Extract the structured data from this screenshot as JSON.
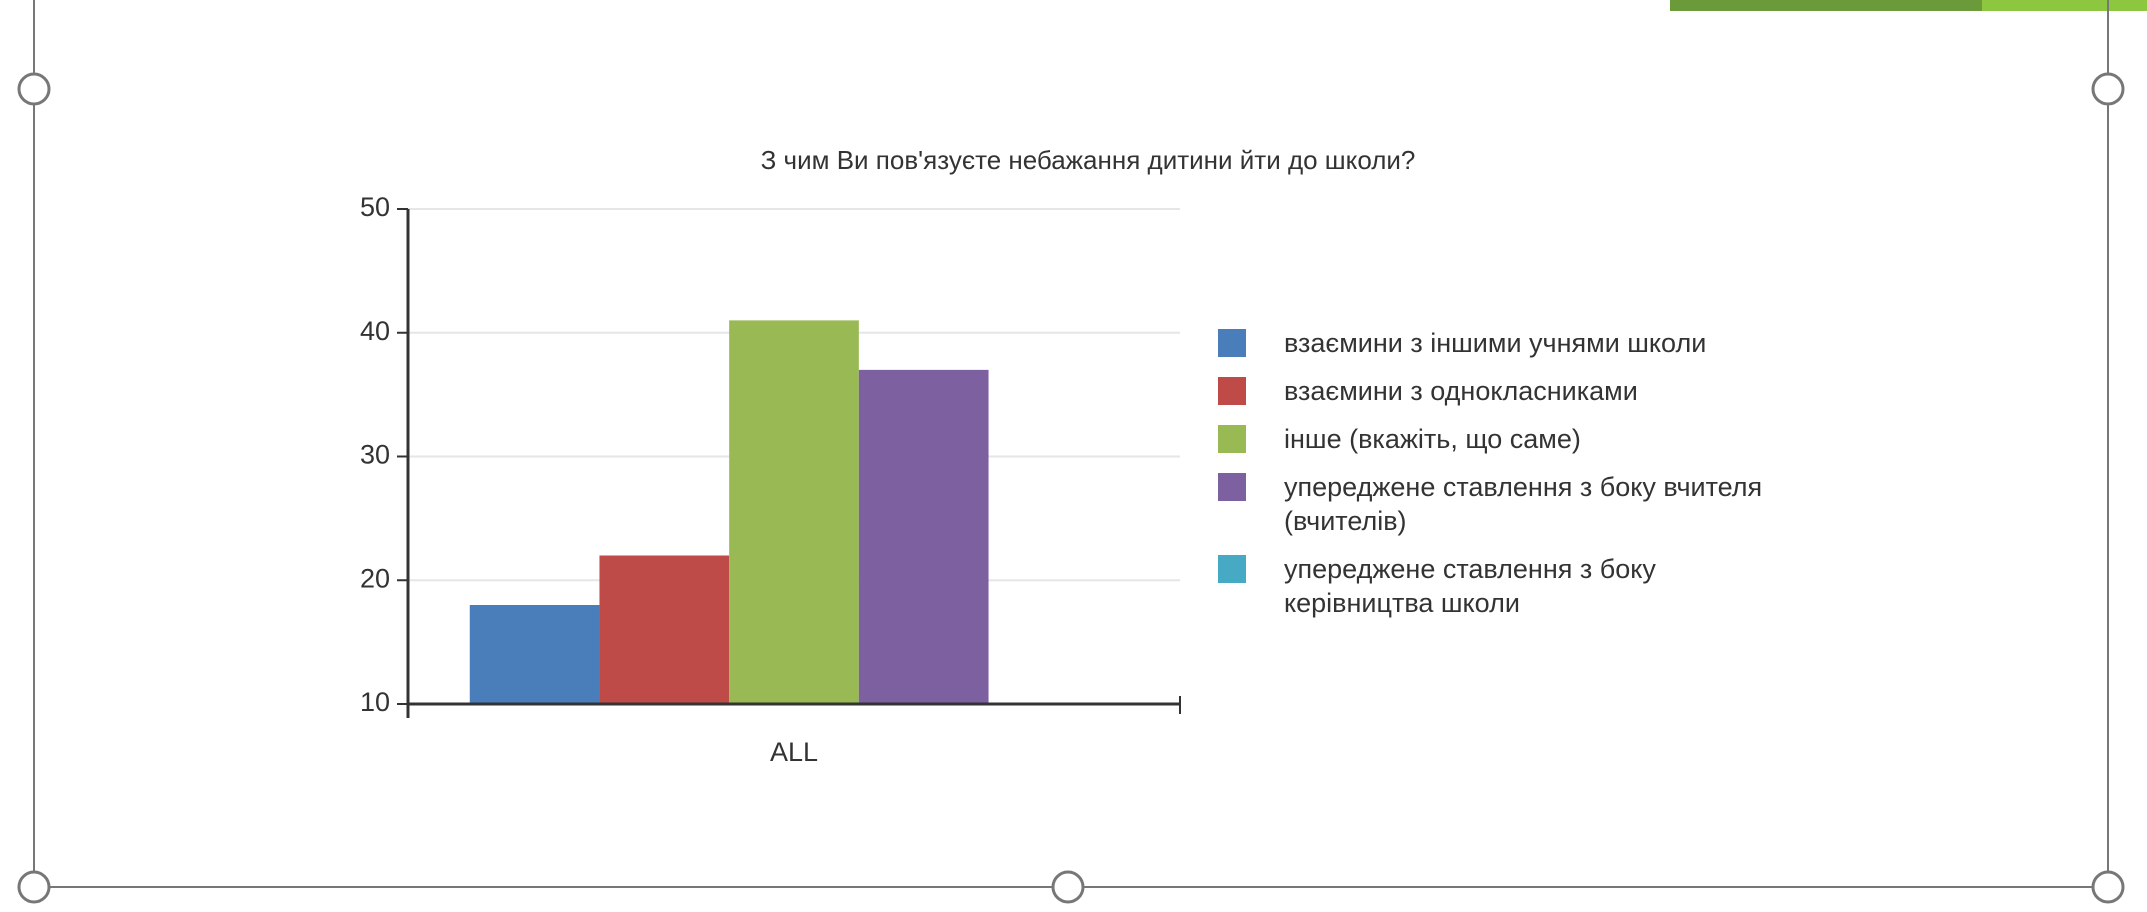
{
  "chart_data": {
    "type": "bar",
    "title": "З чим Ви пов'язуєте небажання дитини йти до школи?",
    "categories": [
      "ALL"
    ],
    "series": [
      {
        "name": "взаємини з іншими учнями школи",
        "color": "#4a7ebb",
        "values": [
          18
        ]
      },
      {
        "name": "взаємини з однокласниками",
        "color": "#be4b48",
        "values": [
          22
        ]
      },
      {
        "name": "інше (вкажіть, що саме)",
        "color": "#98b954",
        "values": [
          41
        ]
      },
      {
        "name": "упереджене ставлення з боку вчителя (вчителів)",
        "color": "#7d60a0",
        "values": [
          37
        ]
      },
      {
        "name": "упереджене ставлення з боку керівництва школи",
        "color": "#46aac4",
        "values": [
          null
        ]
      }
    ],
    "ylim": [
      10,
      50
    ],
    "yticks": [
      10,
      20,
      30,
      40,
      50
    ],
    "grid": true,
    "legend": "right"
  }
}
